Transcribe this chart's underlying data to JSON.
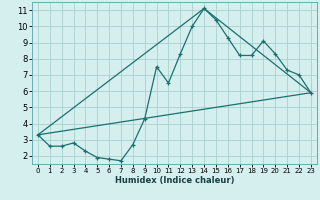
{
  "xlabel": "Humidex (Indice chaleur)",
  "bg_color": "#d4efee",
  "grid_color": "#a8d0ce",
  "line_color": "#1a7070",
  "xlim": [
    -0.5,
    23.5
  ],
  "ylim": [
    1.5,
    11.5
  ],
  "xticks": [
    0,
    1,
    2,
    3,
    4,
    5,
    6,
    7,
    8,
    9,
    10,
    11,
    12,
    13,
    14,
    15,
    16,
    17,
    18,
    19,
    20,
    21,
    22,
    23
  ],
  "yticks": [
    2,
    3,
    4,
    5,
    6,
    7,
    8,
    9,
    10,
    11
  ],
  "line1_x": [
    0,
    1,
    2,
    3,
    4,
    5,
    6,
    7,
    8,
    9,
    10,
    11,
    12,
    13,
    14,
    15,
    16,
    17,
    18,
    19,
    20,
    21,
    22,
    23
  ],
  "line1_y": [
    3.3,
    2.6,
    2.6,
    2.8,
    2.3,
    1.9,
    1.8,
    1.7,
    2.7,
    4.3,
    7.5,
    6.5,
    8.3,
    10.0,
    11.1,
    10.4,
    9.3,
    8.2,
    8.2,
    9.1,
    8.3,
    7.3,
    7.0,
    5.9
  ],
  "line2_x": [
    0,
    23
  ],
  "line2_y": [
    3.3,
    5.9
  ],
  "line3_x": [
    0,
    14,
    23
  ],
  "line3_y": [
    3.3,
    11.1,
    5.9
  ],
  "xlabel_fontsize": 6.0,
  "tick_fontsize_x": 5.0,
  "tick_fontsize_y": 6.0
}
